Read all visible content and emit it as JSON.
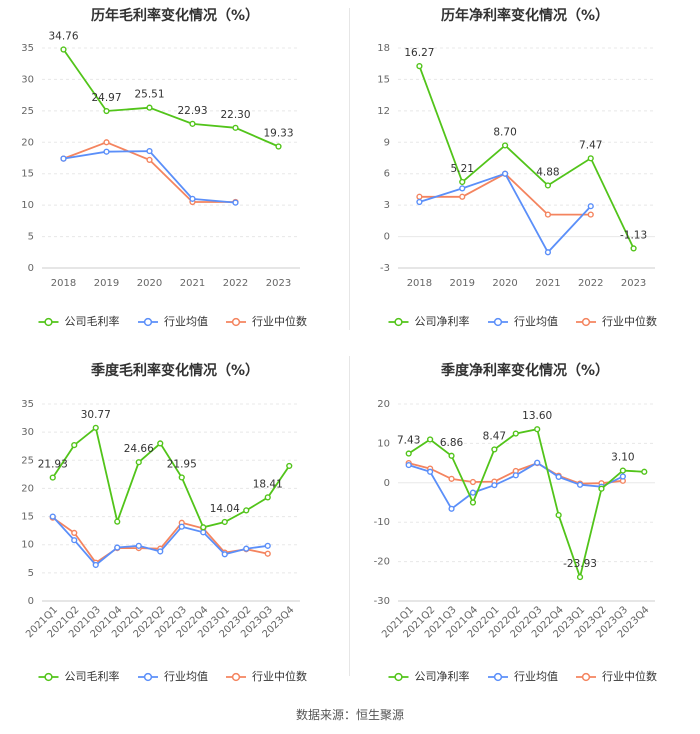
{
  "colors": {
    "company": "#52c41a",
    "avg": "#5b8ff9",
    "median": "#f4845f",
    "grid": "#e8e8e8",
    "axis_text": "#666666"
  },
  "legend": {
    "avg": "行业均值",
    "median": "行业中位数"
  },
  "source": "数据来源：恒生聚源",
  "chart_data": [
    {
      "type": "line",
      "title": "历年毛利率变化情况（%）",
      "categories": [
        "2018",
        "2019",
        "2020",
        "2021",
        "2022",
        "2023"
      ],
      "ylim": [
        0,
        35
      ],
      "yticks": [
        "0",
        "5",
        "10",
        "15",
        "20",
        "25",
        "30",
        "35"
      ],
      "rotate_x": false,
      "series": [
        {
          "key": "company",
          "name": "公司毛利率",
          "values": [
            34.76,
            24.97,
            25.51,
            22.93,
            22.3,
            19.33
          ]
        },
        {
          "key": "avg",
          "name": "行业均值",
          "values": [
            17.4,
            18.5,
            18.6,
            11.0,
            10.4,
            null
          ]
        },
        {
          "key": "median",
          "name": "行业中位数",
          "values": [
            17.4,
            20.0,
            17.2,
            10.5,
            10.5,
            null
          ]
        }
      ],
      "data_labels": [
        {
          "index": 0,
          "value": 34.76,
          "text": "34.76"
        },
        {
          "index": 1,
          "value": 24.97,
          "text": "24.97"
        },
        {
          "index": 2,
          "value": 25.51,
          "text": "25.51"
        },
        {
          "index": 3,
          "value": 22.93,
          "text": "22.93"
        },
        {
          "index": 4,
          "value": 22.3,
          "text": "22.30"
        },
        {
          "index": 5,
          "value": 19.33,
          "text": "19.33"
        }
      ]
    },
    {
      "type": "line",
      "title": "历年净利率变化情况（%）",
      "categories": [
        "2018",
        "2019",
        "2020",
        "2021",
        "2022",
        "2023"
      ],
      "ylim": [
        -3,
        18
      ],
      "yticks": [
        "-3",
        "0",
        "3",
        "6",
        "9",
        "12",
        "15",
        "18"
      ],
      "rotate_x": false,
      "series": [
        {
          "key": "company",
          "name": "公司净利率",
          "values": [
            16.27,
            5.21,
            8.7,
            4.88,
            7.47,
            -1.13
          ]
        },
        {
          "key": "avg",
          "name": "行业均值",
          "values": [
            3.3,
            4.6,
            6.0,
            -1.5,
            2.9,
            null
          ]
        },
        {
          "key": "median",
          "name": "行业中位数",
          "values": [
            3.8,
            3.8,
            6.0,
            2.1,
            2.1,
            null
          ]
        }
      ],
      "data_labels": [
        {
          "index": 0,
          "value": 16.27,
          "text": "16.27"
        },
        {
          "index": 1,
          "value": 5.21,
          "text": "5.21"
        },
        {
          "index": 2,
          "value": 8.7,
          "text": "8.70"
        },
        {
          "index": 3,
          "value": 4.88,
          "text": "4.88"
        },
        {
          "index": 4,
          "value": 7.47,
          "text": "7.47"
        },
        {
          "index": 5,
          "value": -1.13,
          "text": "-1.13"
        }
      ]
    },
    {
      "type": "line",
      "title": "季度毛利率变化情况（%）",
      "categories": [
        "2021Q1",
        "2021Q2",
        "2021Q3",
        "2021Q4",
        "2022Q1",
        "2022Q2",
        "2022Q3",
        "2022Q4",
        "2023Q1",
        "2023Q2",
        "2023Q3",
        "2023Q4"
      ],
      "ylim": [
        0,
        35
      ],
      "yticks": [
        "0",
        "5",
        "10",
        "15",
        "20",
        "25",
        "30",
        "35"
      ],
      "rotate_x": true,
      "series": [
        {
          "key": "company",
          "name": "公司毛利率",
          "values": [
            21.93,
            27.7,
            30.77,
            14.1,
            24.66,
            28.0,
            21.95,
            13.1,
            14.04,
            16.1,
            18.41,
            24.0
          ]
        },
        {
          "key": "avg",
          "name": "行业均值",
          "values": [
            15.0,
            10.8,
            6.4,
            9.5,
            9.8,
            8.8,
            13.2,
            12.2,
            8.3,
            9.3,
            9.8,
            null
          ]
        },
        {
          "key": "median",
          "name": "行业中位数",
          "values": [
            14.8,
            12.1,
            6.8,
            9.4,
            9.4,
            9.3,
            13.9,
            12.9,
            8.6,
            9.2,
            8.4,
            null
          ]
        }
      ],
      "data_labels": [
        {
          "index": 0,
          "value": 21.93,
          "text": "21.93"
        },
        {
          "index": 2,
          "value": 30.77,
          "text": "30.77"
        },
        {
          "index": 4,
          "value": 24.66,
          "text": "24.66"
        },
        {
          "index": 6,
          "value": 21.95,
          "text": "21.95"
        },
        {
          "index": 8,
          "value": 14.04,
          "text": "14.04"
        },
        {
          "index": 10,
          "value": 18.41,
          "text": "18.41"
        }
      ]
    },
    {
      "type": "line",
      "title": "季度净利率变化情况（%）",
      "categories": [
        "2021Q1",
        "2021Q2",
        "2021Q3",
        "2021Q4",
        "2022Q1",
        "2022Q2",
        "2022Q3",
        "2022Q4",
        "2023Q1",
        "2023Q2",
        "2023Q3",
        "2023Q4"
      ],
      "ylim": [
        -30,
        20
      ],
      "yticks": [
        "-30",
        "-20",
        "-10",
        "0",
        "10",
        "20"
      ],
      "rotate_x": true,
      "series": [
        {
          "key": "company",
          "name": "公司净利率",
          "values": [
            7.43,
            11.0,
            6.86,
            -5.0,
            8.47,
            12.5,
            13.6,
            -8.2,
            -23.93,
            -1.5,
            3.1,
            2.8
          ]
        },
        {
          "key": "avg",
          "name": "行业均值",
          "values": [
            4.5,
            2.8,
            -6.6,
            -2.5,
            -0.6,
            1.9,
            5.1,
            1.5,
            -0.5,
            -1.0,
            1.6,
            null
          ]
        },
        {
          "key": "median",
          "name": "行业中位数",
          "values": [
            5.0,
            3.6,
            1.0,
            0.2,
            0.3,
            3.0,
            5.0,
            1.8,
            -0.2,
            -0.1,
            0.5,
            null
          ]
        }
      ],
      "data_labels": [
        {
          "index": 0,
          "value": 7.43,
          "text": "7.43"
        },
        {
          "index": 2,
          "value": 6.86,
          "text": "6.86"
        },
        {
          "index": 4,
          "value": 8.47,
          "text": "8.47"
        },
        {
          "index": 6,
          "value": 13.6,
          "text": "13.60"
        },
        {
          "index": 8,
          "value": -23.93,
          "text": "-23.93"
        },
        {
          "index": 10,
          "value": 3.1,
          "text": "3.10"
        }
      ]
    }
  ]
}
